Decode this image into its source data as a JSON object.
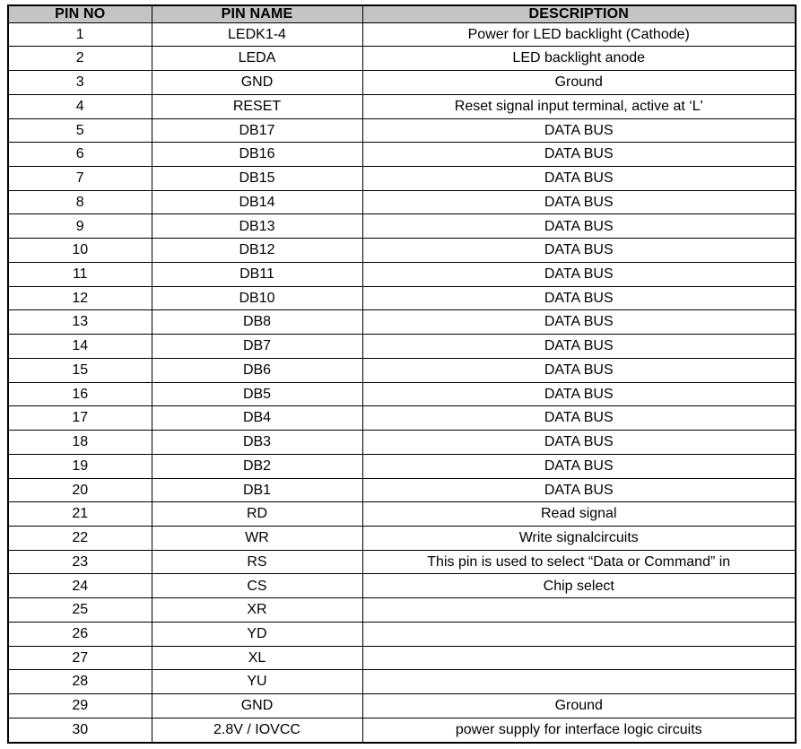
{
  "table": {
    "title": "pin-description-table",
    "columns": [
      "PIN NO",
      "PIN NAME",
      "DESCRIPTION"
    ],
    "rows": [
      [
        "1",
        "LEDK1-4",
        "Power for LED backlight (Cathode)"
      ],
      [
        "2",
        "LEDA",
        "LED backlight anode"
      ],
      [
        "3",
        "GND",
        "Ground"
      ],
      [
        "4",
        "RESET",
        "Reset signal input terminal, active at ‘L'"
      ],
      [
        "5",
        "DB17",
        "DATA BUS"
      ],
      [
        "6",
        "DB16",
        "DATA BUS"
      ],
      [
        "7",
        "DB15",
        "DATA BUS"
      ],
      [
        "8",
        "DB14",
        "DATA BUS"
      ],
      [
        "9",
        "DB13",
        "DATA BUS"
      ],
      [
        "10",
        "DB12",
        "DATA BUS"
      ],
      [
        "11",
        "DB11",
        "DATA BUS"
      ],
      [
        "12",
        "DB10",
        "DATA BUS"
      ],
      [
        "13",
        "DB8",
        "DATA BUS"
      ],
      [
        "14",
        "DB7",
        "DATA BUS"
      ],
      [
        "15",
        "DB6",
        "DATA BUS"
      ],
      [
        "16",
        "DB5",
        "DATA BUS"
      ],
      [
        "17",
        "DB4",
        "DATA BUS"
      ],
      [
        "18",
        "DB3",
        "DATA BUS"
      ],
      [
        "19",
        "DB2",
        "DATA BUS"
      ],
      [
        "20",
        "DB1",
        "DATA BUS"
      ],
      [
        "21",
        "RD",
        "Read signal"
      ],
      [
        "22",
        "WR",
        "Write signalcircuits"
      ],
      [
        "23",
        "RS",
        "This pin is used to select “Data or Command” in"
      ],
      [
        "24",
        "CS",
        "Chip select"
      ],
      [
        "25",
        "XR",
        ""
      ],
      [
        "26",
        "YD",
        ""
      ],
      [
        "27",
        "XL",
        ""
      ],
      [
        "28",
        "YU",
        ""
      ],
      [
        "29",
        "GND",
        "Ground"
      ],
      [
        "30",
        "2.8V / IOVCC",
        "power supply for interface logic circuits"
      ]
    ],
    "colors": {
      "header_bg": "#c4c4c4",
      "border": "#000000",
      "text": "#000000",
      "page_bg": "#ffffff"
    }
  }
}
